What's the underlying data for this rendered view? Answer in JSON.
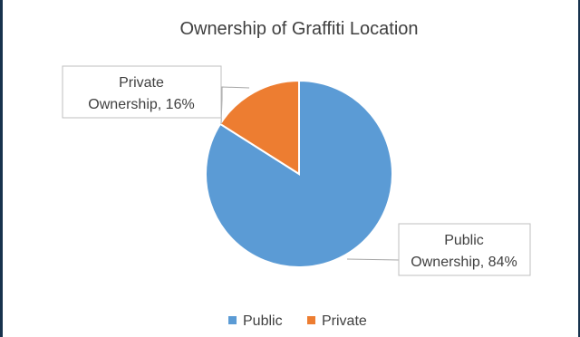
{
  "chart_data": {
    "type": "pie",
    "title": "Ownership of Graffiti Location",
    "categories": [
      "Public",
      "Private"
    ],
    "values": [
      84,
      16
    ],
    "unit": "%",
    "colors": [
      "#5b9bd5",
      "#ed7d31"
    ],
    "data_labels": [
      {
        "category": "Public",
        "line1": "Public",
        "line2": "Ownership, 84%"
      },
      {
        "category": "Private",
        "line1": "Private",
        "line2": "Ownership, 16%"
      }
    ],
    "legend": {
      "placement": "bottom",
      "entries": [
        "Public",
        "Private"
      ]
    }
  }
}
